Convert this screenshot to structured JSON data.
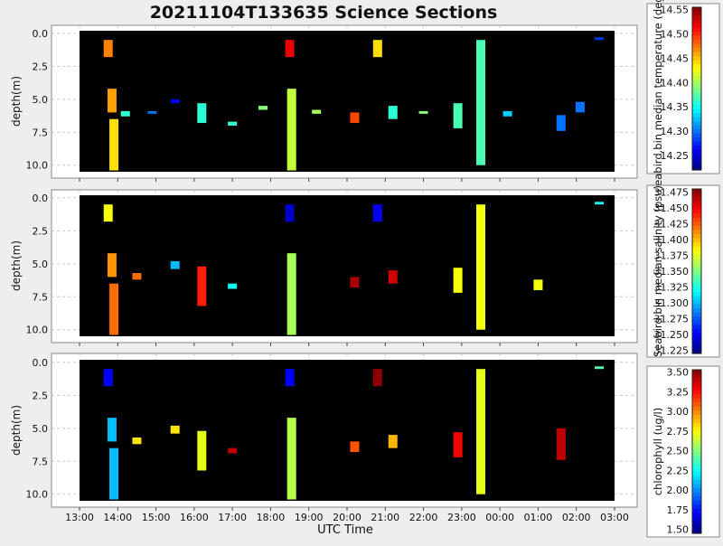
{
  "title": "20211104T133635 Science Sections",
  "xlabel": "UTC Time",
  "x_ticks": [
    "13:00",
    "14:00",
    "15:00",
    "16:00",
    "17:00",
    "18:00",
    "19:00",
    "20:00",
    "21:00",
    "22:00",
    "23:00",
    "00:00",
    "01:00",
    "02:00",
    "03:00"
  ],
  "y_ticks": [
    "0.0",
    "2.5",
    "5.0",
    "7.5",
    "10.0"
  ],
  "ylabel": "depth(m)",
  "chart_data": [
    {
      "type": "scatter",
      "title": "20211104T133635 Science Sections",
      "xlabel": "UTC Time",
      "ylabel": "depth(m)",
      "xlim": [
        13.0,
        27.0
      ],
      "ylim": [
        10.5,
        -0.2
      ],
      "colorbar": {
        "label": "Seabird.bin median temperature (degC)",
        "range": [
          14.22,
          14.555
        ],
        "ticks": [
          "14.25",
          "14.30",
          "14.35",
          "14.40",
          "14.45",
          "14.50",
          "14.55"
        ]
      },
      "series": [
        {
          "values": [
            {
              "x": 13.75,
              "y0": 0.5,
              "y1": 1.8,
              "v": 14.47
            },
            {
              "x": 13.85,
              "y0": 4.2,
              "y1": 6.0,
              "v": 14.46
            },
            {
              "x": 13.9,
              "y0": 6.5,
              "y1": 10.4,
              "v": 14.44
            },
            {
              "x": 14.2,
              "y0": 5.9,
              "y1": 6.3,
              "v": 14.36
            },
            {
              "x": 14.9,
              "y0": 5.9,
              "y1": 6.1,
              "v": 14.3
            },
            {
              "x": 15.5,
              "y0": 5.0,
              "y1": 5.3,
              "v": 14.26
            },
            {
              "x": 16.2,
              "y0": 5.3,
              "y1": 6.8,
              "v": 14.36
            },
            {
              "x": 17.0,
              "y0": 6.7,
              "y1": 7.0,
              "v": 14.36
            },
            {
              "x": 17.8,
              "y0": 5.5,
              "y1": 5.8,
              "v": 14.39
            },
            {
              "x": 18.5,
              "y0": 0.5,
              "y1": 1.8,
              "v": 14.52
            },
            {
              "x": 18.55,
              "y0": 4.2,
              "y1": 10.4,
              "v": 14.41
            },
            {
              "x": 19.2,
              "y0": 5.8,
              "y1": 6.1,
              "v": 14.4
            },
            {
              "x": 20.2,
              "y0": 6.0,
              "y1": 6.8,
              "v": 14.49
            },
            {
              "x": 20.8,
              "y0": 0.5,
              "y1": 1.8,
              "v": 14.44
            },
            {
              "x": 21.2,
              "y0": 5.5,
              "y1": 6.5,
              "v": 14.36
            },
            {
              "x": 22.0,
              "y0": 5.9,
              "y1": 6.1,
              "v": 14.39
            },
            {
              "x": 22.9,
              "y0": 5.3,
              "y1": 7.2,
              "v": 14.37
            },
            {
              "x": 23.5,
              "y0": 0.5,
              "y1": 10.0,
              "v": 14.37
            },
            {
              "x": 24.2,
              "y0": 5.9,
              "y1": 6.3,
              "v": 14.33
            },
            {
              "x": 25.6,
              "y0": 6.2,
              "y1": 7.4,
              "v": 14.3
            },
            {
              "x": 26.1,
              "y0": 5.2,
              "y1": 6.0,
              "v": 14.3
            },
            {
              "x": 26.6,
              "y0": 0.3,
              "y1": 0.5,
              "v": 14.28
            }
          ]
        }
      ]
    },
    {
      "type": "scatter",
      "xlabel": "",
      "ylabel": "depth(m)",
      "xlim": [
        13.0,
        27.0
      ],
      "ylim": [
        10.5,
        -0.2
      ],
      "colorbar": {
        "label": "Seabird.bin median salinity (psu)",
        "range": [
          31.22,
          31.48
        ],
        "ticks": [
          "31.225",
          "31.250",
          "31.275",
          "31.300",
          "31.325",
          "31.350",
          "31.375",
          "31.400",
          "31.425",
          "31.450",
          "31.475"
        ]
      },
      "series": [
        {
          "values": [
            {
              "x": 13.75,
              "y0": 0.5,
              "y1": 1.8,
              "v": 31.38
            },
            {
              "x": 13.85,
              "y0": 4.2,
              "y1": 6.0,
              "v": 31.41
            },
            {
              "x": 13.9,
              "y0": 6.5,
              "y1": 10.4,
              "v": 31.42
            },
            {
              "x": 14.5,
              "y0": 5.7,
              "y1": 6.2,
              "v": 31.42
            },
            {
              "x": 15.5,
              "y0": 4.8,
              "y1": 5.4,
              "v": 31.3
            },
            {
              "x": 16.2,
              "y0": 5.2,
              "y1": 8.2,
              "v": 31.44
            },
            {
              "x": 17.0,
              "y0": 6.5,
              "y1": 6.9,
              "v": 31.32
            },
            {
              "x": 18.5,
              "y0": 0.5,
              "y1": 1.8,
              "v": 31.24
            },
            {
              "x": 18.55,
              "y0": 4.2,
              "y1": 10.4,
              "v": 31.36
            },
            {
              "x": 20.2,
              "y0": 6.0,
              "y1": 6.8,
              "v": 31.47
            },
            {
              "x": 20.8,
              "y0": 0.5,
              "y1": 1.8,
              "v": 31.25
            },
            {
              "x": 21.2,
              "y0": 5.5,
              "y1": 6.5,
              "v": 31.46
            },
            {
              "x": 22.9,
              "y0": 5.3,
              "y1": 7.2,
              "v": 31.38
            },
            {
              "x": 23.5,
              "y0": 0.5,
              "y1": 10.0,
              "v": 31.38
            },
            {
              "x": 25.0,
              "y0": 6.2,
              "y1": 7.0,
              "v": 31.38
            },
            {
              "x": 26.6,
              "y0": 0.3,
              "y1": 0.5,
              "v": 31.32
            }
          ]
        }
      ]
    },
    {
      "type": "scatter",
      "xlabel": "UTC Time",
      "ylabel": "depth(m)",
      "xlim": [
        13.0,
        27.0
      ],
      "ylim": [
        10.5,
        -0.2
      ],
      "colorbar": {
        "label": "chlorophyll (ug/l)",
        "range": [
          1.45,
          3.53
        ],
        "ticks": [
          "1.50",
          "1.75",
          "2.00",
          "2.25",
          "2.50",
          "2.75",
          "3.00",
          "3.25",
          "3.50"
        ]
      },
      "series": [
        {
          "values": [
            {
              "x": 13.75,
              "y0": 0.5,
              "y1": 1.8,
              "v": 1.7
            },
            {
              "x": 13.85,
              "y0": 4.2,
              "y1": 6.0,
              "v": 2.1
            },
            {
              "x": 13.9,
              "y0": 6.5,
              "y1": 10.4,
              "v": 2.1
            },
            {
              "x": 14.5,
              "y0": 5.7,
              "y1": 6.2,
              "v": 2.8
            },
            {
              "x": 15.5,
              "y0": 4.8,
              "y1": 5.4,
              "v": 2.8
            },
            {
              "x": 16.2,
              "y0": 5.2,
              "y1": 8.2,
              "v": 2.7
            },
            {
              "x": 17.0,
              "y0": 6.5,
              "y1": 6.9,
              "v": 3.4
            },
            {
              "x": 18.5,
              "y0": 0.5,
              "y1": 1.8,
              "v": 1.7
            },
            {
              "x": 18.55,
              "y0": 4.2,
              "y1": 10.4,
              "v": 2.6
            },
            {
              "x": 20.2,
              "y0": 6.0,
              "y1": 6.8,
              "v": 3.1
            },
            {
              "x": 20.8,
              "y0": 0.5,
              "y1": 1.8,
              "v": 3.5
            },
            {
              "x": 21.2,
              "y0": 5.5,
              "y1": 6.5,
              "v": 2.9
            },
            {
              "x": 22.9,
              "y0": 5.3,
              "y1": 7.2,
              "v": 3.3
            },
            {
              "x": 23.5,
              "y0": 0.5,
              "y1": 10.0,
              "v": 2.7
            },
            {
              "x": 25.6,
              "y0": 5.0,
              "y1": 7.4,
              "v": 3.4
            },
            {
              "x": 26.6,
              "y0": 0.3,
              "y1": 0.5,
              "v": 2.4
            }
          ]
        }
      ]
    }
  ]
}
